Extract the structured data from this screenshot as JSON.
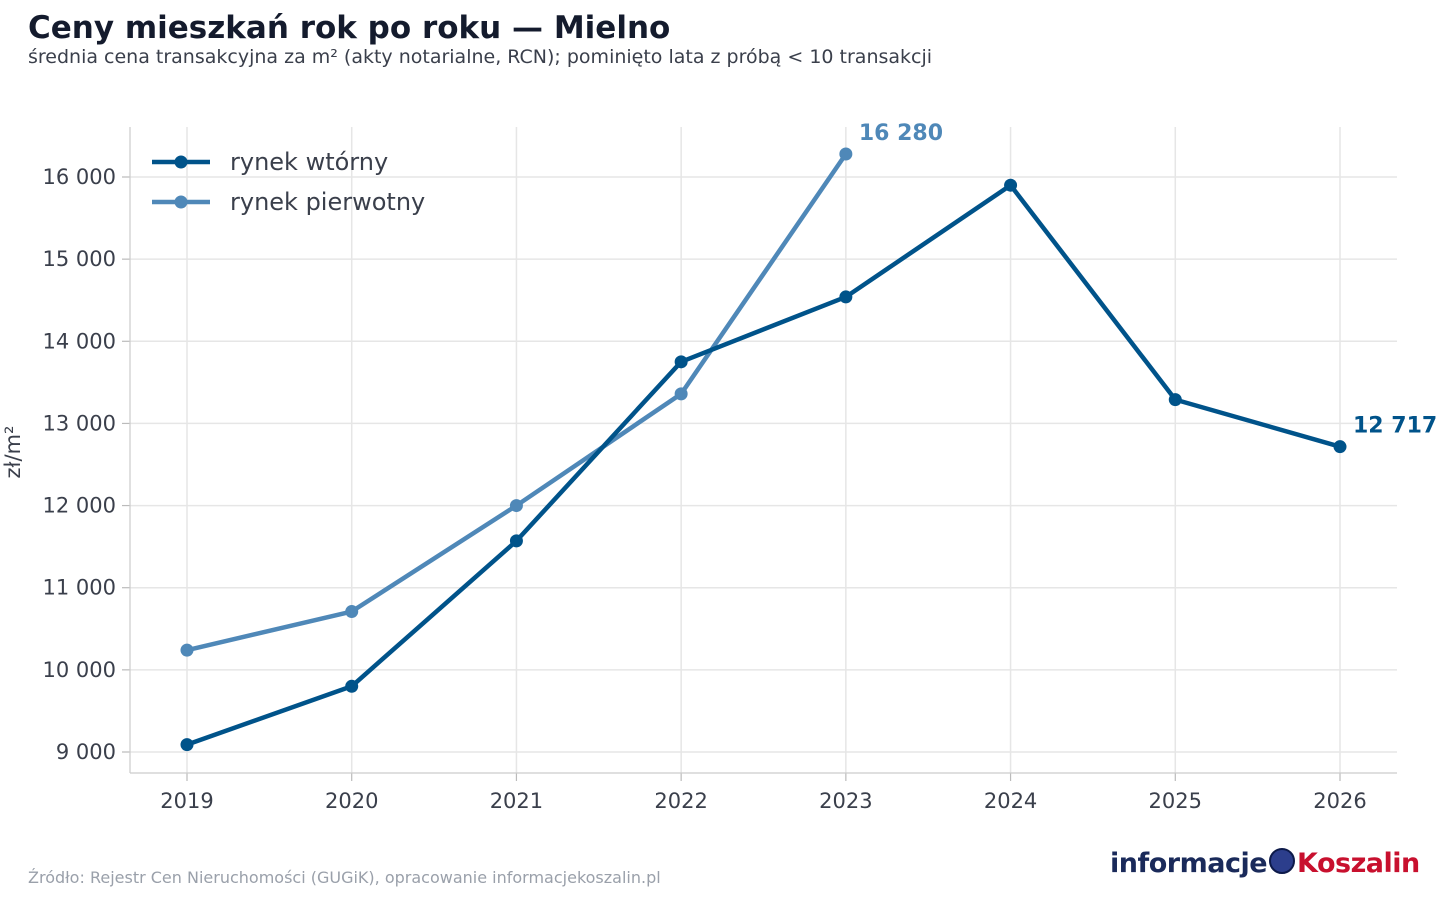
{
  "header": {
    "title": "Ceny mieszkań rok po roku — Mielno",
    "subtitle": "średnia cena transakcyjna za m² (akty notarialne, RCN); pominięto lata z próbą < 10 transakcji"
  },
  "footer": {
    "source": "Źródło: Rejestr Cen Nieruchomości (GUGiK), opracowanie informacjekoszalin.pl",
    "logo_part1": "informacje",
    "logo_part2": "Koszalin"
  },
  "chart_data": {
    "type": "line",
    "title": "Ceny mieszkań rok po roku — Mielno",
    "ylabel": "zł/m²",
    "xlabel": "",
    "x": [
      2019,
      2020,
      2021,
      2022,
      2023,
      2024,
      2025,
      2026
    ],
    "x_tick_labels": [
      "2019",
      "2020",
      "2021",
      "2022",
      "2023",
      "2024",
      "2025",
      "2026"
    ],
    "ylim": [
      8700,
      16650
    ],
    "y_ticks": [
      9000,
      10000,
      11000,
      12000,
      13000,
      14000,
      15000,
      16000
    ],
    "y_tick_labels": [
      "9 000",
      "10 000",
      "11 000",
      "12 000",
      "13 000",
      "14 000",
      "15 000",
      "16 000"
    ],
    "grid": true,
    "legend_position": "top-left",
    "series": [
      {
        "name": "rynek wtórny",
        "color": "#00538a",
        "values": [
          9090,
          9800,
          11570,
          13750,
          14540,
          15900,
          13290,
          12717
        ],
        "end_label": "12 717",
        "end_label_index": 7
      },
      {
        "name": "rynek pierwotny",
        "color": "#4f88b8",
        "values": [
          10240,
          10710,
          12000,
          13360,
          16280,
          null,
          null,
          null
        ],
        "end_label": "16 280",
        "end_label_index": 4
      }
    ]
  }
}
